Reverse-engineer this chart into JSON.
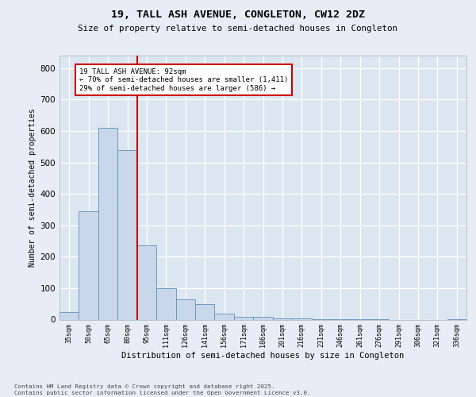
{
  "title1": "19, TALL ASH AVENUE, CONGLETON, CW12 2DZ",
  "title2": "Size of property relative to semi-detached houses in Congleton",
  "xlabel": "Distribution of semi-detached houses by size in Congleton",
  "ylabel": "Number of semi-detached properties",
  "bar_values": [
    25,
    345,
    610,
    540,
    235,
    100,
    65,
    50,
    20,
    10,
    8,
    5,
    3,
    2,
    1,
    1,
    1,
    0,
    0,
    0,
    2
  ],
  "categories": [
    "35sqm",
    "50sqm",
    "65sqm",
    "80sqm",
    "95sqm",
    "111sqm",
    "126sqm",
    "141sqm",
    "156sqm",
    "171sqm",
    "186sqm",
    "201sqm",
    "216sqm",
    "231sqm",
    "246sqm",
    "261sqm",
    "276sqm",
    "291sqm",
    "306sqm",
    "321sqm",
    "336sqm"
  ],
  "bar_color": "#c8d8ea",
  "bar_edge_color": "#6090b8",
  "vline_pos": 3.5,
  "vline_color": "#cc0000",
  "annotation_text": "19 TALL ASH AVENUE: 92sqm\n← 70% of semi-detached houses are smaller (1,411)\n29% of semi-detached houses are larger (586) →",
  "ylim": [
    0,
    840
  ],
  "yticks": [
    0,
    100,
    200,
    300,
    400,
    500,
    600,
    700,
    800
  ],
  "footer_text": "Contains HM Land Registry data © Crown copyright and database right 2025.\nContains public sector information licensed under the Open Government Licence v3.0.",
  "fig_bg_color": "#e8edf5",
  "plot_bg_color": "#dce6f0",
  "grid_color": "#ffffff"
}
